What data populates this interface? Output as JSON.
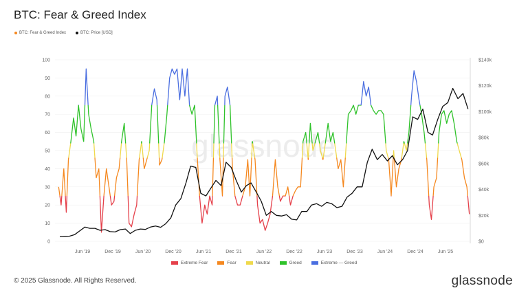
{
  "title": "BTC: Fear & Greed Index",
  "top_legend": [
    {
      "label": "BTC: Fear & Greed Index",
      "color": "#f5881f"
    },
    {
      "label": "BTC: Price [USD]",
      "color": "#111111"
    }
  ],
  "footer": {
    "copyright": "© 2025 Glassnode. All Rights Reserved.",
    "logo": "glassnode"
  },
  "watermark": "glassnode",
  "chart_data": {
    "type": "line",
    "title": "BTC: Fear & Greed Index",
    "x_tick_labels": [
      "Jun '19",
      "Dec '19",
      "Jun '20",
      "Dec '20",
      "Jun '21",
      "Dec '21",
      "Jun '22",
      "Dec '22",
      "Jun '23",
      "Dec '23",
      "Jun '24",
      "Dec '24",
      "Jun '25"
    ],
    "y_left": {
      "ticks": [
        "0",
        "10",
        "20",
        "30",
        "40",
        "50",
        "60",
        "70",
        "80",
        "90",
        "100"
      ],
      "range": [
        0,
        100
      ]
    },
    "y_right": {
      "ticks": [
        "$0",
        "$20k",
        "$40k",
        "$60k",
        "$80k",
        "$100k",
        "$120k",
        "$140k"
      ],
      "range": [
        0,
        140000
      ]
    },
    "grid": true,
    "bands": [
      {
        "name": "Extreme Fear",
        "from": 0,
        "to": 25,
        "color": "#e5404a"
      },
      {
        "name": "Fear",
        "from": 25,
        "to": 46,
        "color": "#f5881f"
      },
      {
        "name": "Neutral",
        "from": 46,
        "to": 54,
        "color": "#efd94c"
      },
      {
        "name": "Greed",
        "from": 54,
        "to": 75,
        "color": "#2fc22a"
      },
      {
        "name": "Extreme — Greed",
        "from": 75,
        "to": 100,
        "color": "#4a6ee0"
      }
    ],
    "months": [
      "2019-01",
      "2019-02",
      "2019-03",
      "2019-04",
      "2019-05",
      "2019-06",
      "2019-07",
      "2019-08",
      "2019-09",
      "2019-10",
      "2019-11",
      "2019-12",
      "2020-01",
      "2020-02",
      "2020-03",
      "2020-04",
      "2020-05",
      "2020-06",
      "2020-07",
      "2020-08",
      "2020-09",
      "2020-10",
      "2020-11",
      "2020-12",
      "2021-01",
      "2021-02",
      "2021-03",
      "2021-04",
      "2021-05",
      "2021-06",
      "2021-07",
      "2021-08",
      "2021-09",
      "2021-10",
      "2021-11",
      "2021-12",
      "2022-01",
      "2022-02",
      "2022-03",
      "2022-04",
      "2022-05",
      "2022-06",
      "2022-07",
      "2022-08",
      "2022-09",
      "2022-10",
      "2022-11",
      "2022-12",
      "2023-01",
      "2023-02",
      "2023-03",
      "2023-04",
      "2023-05",
      "2023-06",
      "2023-07",
      "2023-08",
      "2023-09",
      "2023-10",
      "2023-11",
      "2023-12",
      "2024-01",
      "2024-02",
      "2024-03",
      "2024-04",
      "2024-05",
      "2024-06",
      "2024-07",
      "2024-08",
      "2024-09",
      "2024-10",
      "2024-11",
      "2024-12",
      "2025-01",
      "2025-02",
      "2025-03",
      "2025-04",
      "2025-05",
      "2025-06",
      "2025-07",
      "2025-08",
      "2025-09",
      "2025-10"
    ],
    "series": [
      {
        "name": "BTC: Fear & Greed Index",
        "axis": "left",
        "values_twice_monthly": [
          [
            30,
            20
          ],
          [
            40,
            16
          ],
          [
            45,
            55
          ],
          [
            68,
            58
          ],
          [
            75,
            62
          ],
          [
            55,
            95
          ],
          [
            70,
            62
          ],
          [
            55,
            35
          ],
          [
            40,
            5
          ],
          [
            25,
            40
          ],
          [
            30,
            20
          ],
          [
            22,
            35
          ],
          [
            40,
            55
          ],
          [
            65,
            45
          ],
          [
            10,
            8
          ],
          [
            15,
            20
          ],
          [
            45,
            55
          ],
          [
            40,
            45
          ],
          [
            50,
            75
          ],
          [
            84,
            78
          ],
          [
            42,
            45
          ],
          [
            55,
            70
          ],
          [
            90,
            95
          ],
          [
            92,
            95
          ],
          [
            78,
            95
          ],
          [
            80,
            95
          ],
          [
            75,
            70
          ],
          [
            75,
            48
          ],
          [
            25,
            10
          ],
          [
            20,
            15
          ],
          [
            25,
            20
          ],
          [
            75,
            80
          ],
          [
            45,
            25
          ],
          [
            80,
            85
          ],
          [
            75,
            40
          ],
          [
            25,
            20
          ],
          [
            20,
            25
          ],
          [
            30,
            45
          ],
          [
            25,
            55
          ],
          [
            45,
            20
          ],
          [
            10,
            12
          ],
          [
            6,
            10
          ],
          [
            15,
            25
          ],
          [
            45,
            30
          ],
          [
            22,
            25
          ],
          [
            25,
            30
          ],
          [
            20,
            25
          ],
          [
            28,
            30
          ],
          [
            30,
            55
          ],
          [
            60,
            45
          ],
          [
            65,
            50
          ],
          [
            55,
            60
          ],
          [
            50,
            45
          ],
          [
            55,
            65
          ],
          [
            55,
            60
          ],
          [
            50,
            40
          ],
          [
            45,
            30
          ],
          [
            50,
            70
          ],
          [
            72,
            75
          ],
          [
            70,
            75
          ],
          [
            75,
            88
          ],
          [
            80,
            85
          ],
          [
            75,
            72
          ],
          [
            70,
            72
          ],
          [
            72,
            70
          ],
          [
            50,
            45
          ],
          [
            25,
            50
          ],
          [
            30,
            40
          ],
          [
            45,
            55
          ],
          [
            50,
            60
          ],
          [
            80,
            94
          ],
          [
            88,
            78
          ],
          [
            70,
            60
          ],
          [
            45,
            20
          ],
          [
            12,
            30
          ],
          [
            35,
            60
          ],
          [
            70,
            72
          ],
          [
            65,
            70
          ],
          [
            72,
            65
          ],
          [
            55,
            50
          ],
          [
            45,
            35
          ],
          [
            30,
            15
          ]
        ]
      },
      {
        "name": "BTC: Price [USD]",
        "axis": "right",
        "color": "#111111",
        "values_monthly": [
          3500,
          3800,
          4000,
          5200,
          8000,
          11000,
          10000,
          10000,
          8500,
          9000,
          7500,
          7200,
          9000,
          9500,
          6000,
          8500,
          9500,
          9200,
          11000,
          11800,
          10800,
          13500,
          18000,
          28000,
          33000,
          45000,
          58000,
          57000,
          37000,
          35000,
          41000,
          47000,
          43000,
          61000,
          57000,
          47000,
          38000,
          43000,
          45000,
          38000,
          31000,
          20000,
          23000,
          20000,
          19500,
          20500,
          17000,
          16500,
          23000,
          23000,
          28000,
          29000,
          27000,
          30000,
          29000,
          26000,
          27000,
          34000,
          37000,
          42000,
          42000,
          61000,
          71000,
          63000,
          67000,
          62000,
          66000,
          59000,
          63000,
          70000,
          96000,
          94000,
          102000,
          84000,
          82000,
          94000,
          104000,
          107000,
          118000,
          110000,
          114000,
          102000
        ]
      }
    ]
  }
}
